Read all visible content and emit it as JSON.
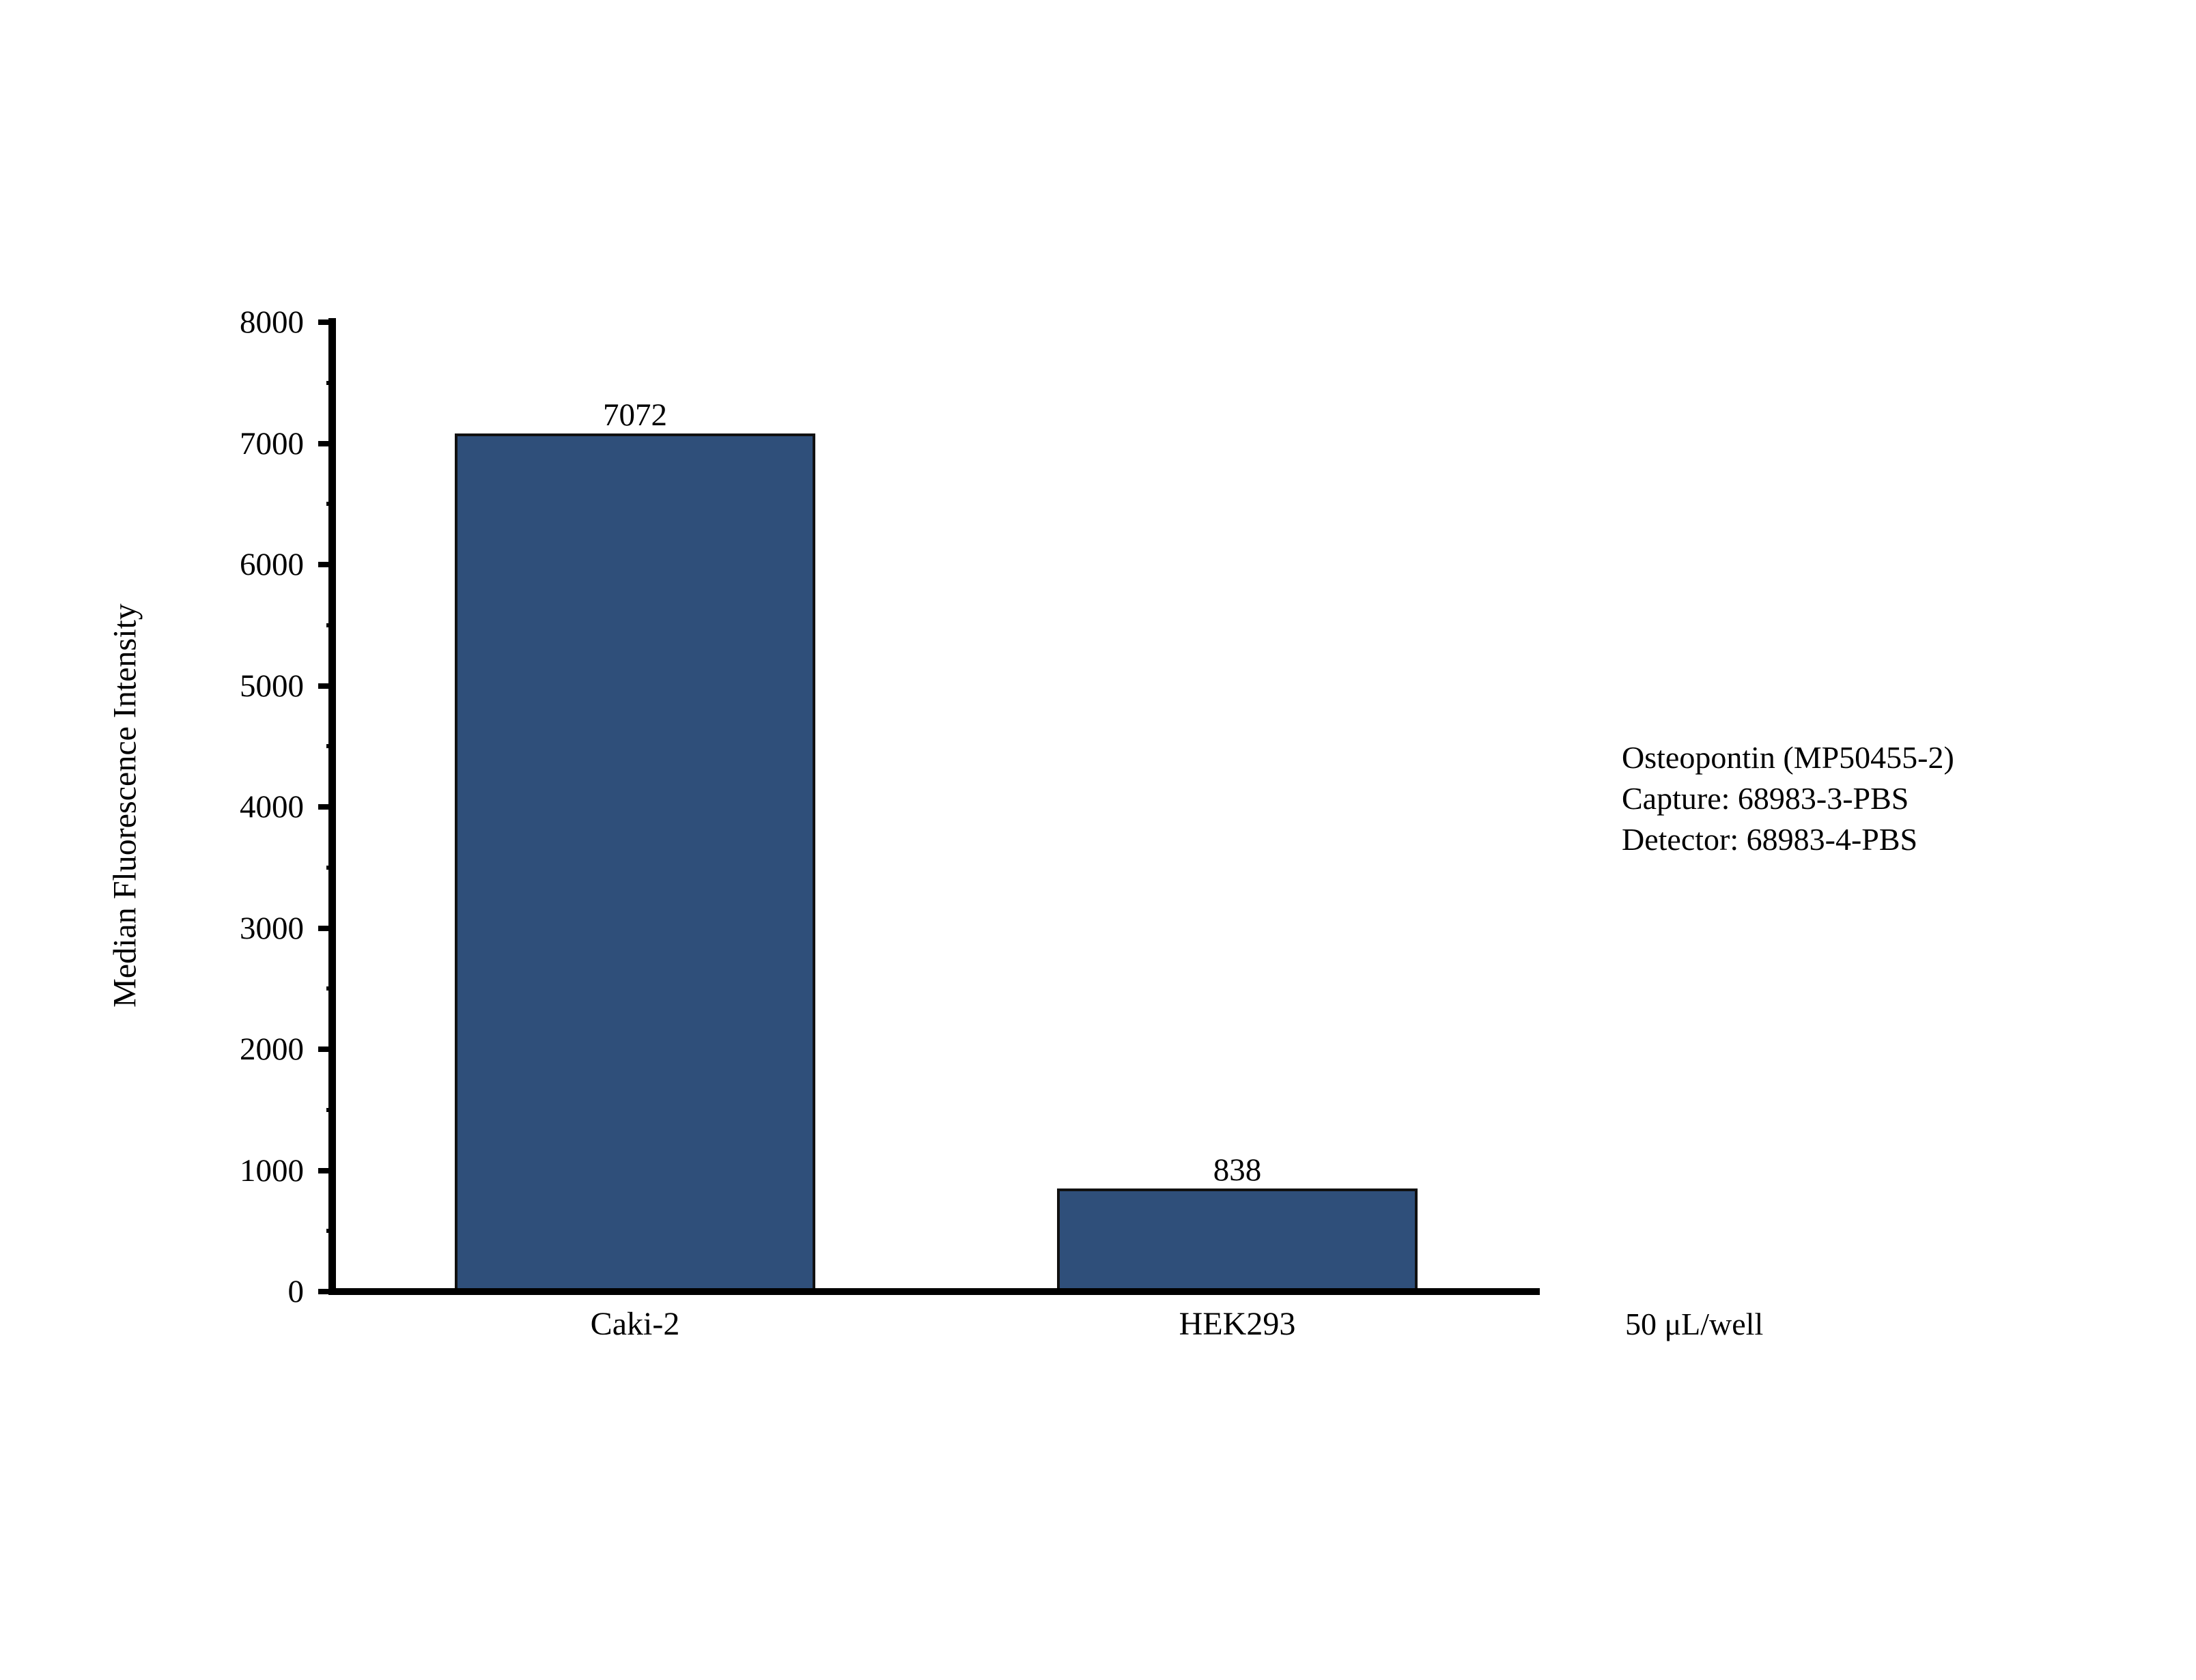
{
  "chart_data": {
    "type": "bar",
    "categories": [
      "Caki-2",
      "HEK293"
    ],
    "values": [
      7072,
      838
    ],
    "title": "",
    "xlabel": "",
    "ylabel": "Median Fluorescence Intensity",
    "ylim": [
      0,
      8000
    ],
    "ytick_values": [
      0,
      1000,
      2000,
      3000,
      4000,
      5000,
      6000,
      7000,
      8000
    ],
    "ytick_minor_step": 500,
    "grid": false,
    "legend_position": "none",
    "bar_fill_color": "#2F4F7A",
    "bar_border_color": "#111111",
    "axis_color": "#000000"
  },
  "annotations": {
    "lines": [
      "Osteopontin (MP50455-2)",
      "Capture: 68983-3-PBS",
      "Detector: 68983-4-PBS"
    ],
    "volume_note": "50 μL/well"
  }
}
